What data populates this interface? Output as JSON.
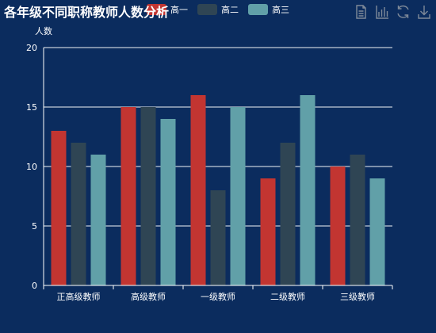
{
  "chart_data": {
    "type": "bar",
    "title": "各年级不同职称教师人数分析",
    "ylabel": "人数",
    "xlabel": "",
    "ylim": [
      0,
      20
    ],
    "yticks": [
      0,
      5,
      10,
      15,
      20
    ],
    "grid": true,
    "legend_position": "top",
    "categories": [
      "正高级教师",
      "高级教师",
      "一级教师",
      "二级教师",
      "三级教师"
    ],
    "series": [
      {
        "name": "高一",
        "color": "#c23531",
        "values": [
          13,
          15,
          16,
          9,
          10
        ]
      },
      {
        "name": "高二",
        "color": "#2f4554",
        "values": [
          12,
          15,
          8,
          12,
          11
        ]
      },
      {
        "name": "高三",
        "color": "#61a0a8",
        "values": [
          11,
          14,
          15,
          16,
          9
        ]
      }
    ]
  },
  "colors": {
    "background": "#0b2c5e",
    "axis": "#ffffff",
    "toolbox": "#7f8a99"
  },
  "toolbox": {
    "icons": [
      "data-view-icon",
      "bar-chart-icon",
      "restore-icon",
      "download-icon"
    ]
  }
}
